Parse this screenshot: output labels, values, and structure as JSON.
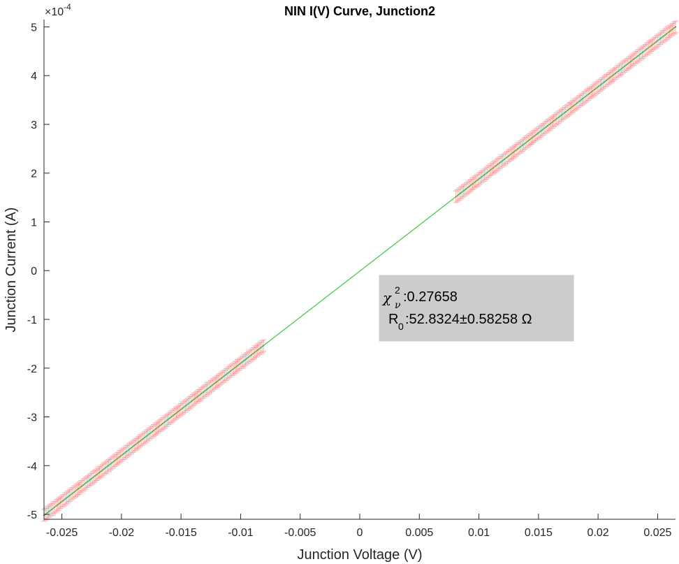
{
  "chart_data": {
    "type": "scatter",
    "title": "NIN I(V) Curve, Junction2",
    "xlabel": "Junction Voltage (V)",
    "ylabel": "Junction Current (A)",
    "xlim": [
      -0.0265,
      0.0265
    ],
    "ylim": [
      -5.1,
      5.15
    ],
    "y_exponent_label": "×10",
    "y_exponent": "-4",
    "x_ticks": [
      -0.025,
      -0.02,
      -0.015,
      -0.01,
      -0.005,
      0,
      0.005,
      0.01,
      0.015,
      0.02,
      0.025
    ],
    "x_tick_labels": [
      "-0.025",
      "-0.02",
      "-0.015",
      "-0.01",
      "-0.005",
      "0",
      "0.005",
      "0.01",
      "0.015",
      "0.02",
      "0.025"
    ],
    "y_ticks": [
      -5,
      -4,
      -3,
      -2,
      -1,
      0,
      1,
      2,
      3,
      4,
      5
    ],
    "y_tick_labels": [
      "-5",
      "-4",
      "-3",
      "-2",
      "-1",
      "0",
      "1",
      "2",
      "3",
      "4",
      "5"
    ],
    "grid": false,
    "series": [
      {
        "kind": "data-with-error-bars",
        "color": "#ff8080",
        "x_start": -0.0265,
        "x_end": 0.0265,
        "y_start": -5.02,
        "y_end": 5.0,
        "x_gap": [
          -0.008,
          0.008
        ],
        "y_error": 0.12
      },
      {
        "kind": "fit-line",
        "color": "#3cc83c",
        "x": [
          -0.0265,
          0.0265
        ],
        "y": [
          -5.02,
          5.0
        ]
      }
    ],
    "annotation": {
      "chi_symbol": "χ",
      "chi_superscript": "2",
      "chi_subscript": "ν",
      "chi_value": ":0.27658",
      "r_symbol": "R",
      "r_subscript": "0",
      "r_value": ":52.8324±0.58258 Ω",
      "box_color": "#cccccc"
    }
  }
}
